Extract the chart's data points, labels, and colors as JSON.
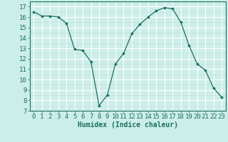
{
  "x": [
    0,
    1,
    2,
    3,
    4,
    5,
    6,
    7,
    8,
    9,
    10,
    11,
    12,
    13,
    14,
    15,
    16,
    17,
    18,
    19,
    20,
    21,
    22,
    23
  ],
  "y": [
    16.5,
    16.1,
    16.1,
    16.0,
    15.4,
    12.9,
    12.8,
    11.7,
    7.5,
    8.5,
    11.5,
    12.5,
    14.4,
    15.3,
    16.0,
    16.6,
    16.9,
    16.8,
    15.5,
    13.3,
    11.5,
    10.9,
    9.2,
    8.3
  ],
  "xlabel": "Humidex (Indice chaleur)",
  "ylim": [
    7,
    17.5
  ],
  "xlim": [
    -0.5,
    23.5
  ],
  "line_color": "#1a7060",
  "marker_color": "#1a7060",
  "bg_color": "#cceee8",
  "grid_major_color": "#ffffff",
  "grid_minor_color": "#c8e0dc",
  "yticks": [
    7,
    8,
    9,
    10,
    11,
    12,
    13,
    14,
    15,
    16,
    17
  ],
  "xticks": [
    0,
    1,
    2,
    3,
    4,
    5,
    6,
    7,
    8,
    9,
    10,
    11,
    12,
    13,
    14,
    15,
    16,
    17,
    18,
    19,
    20,
    21,
    22,
    23
  ],
  "xlabel_fontsize": 7,
  "tick_fontsize": 6.5
}
